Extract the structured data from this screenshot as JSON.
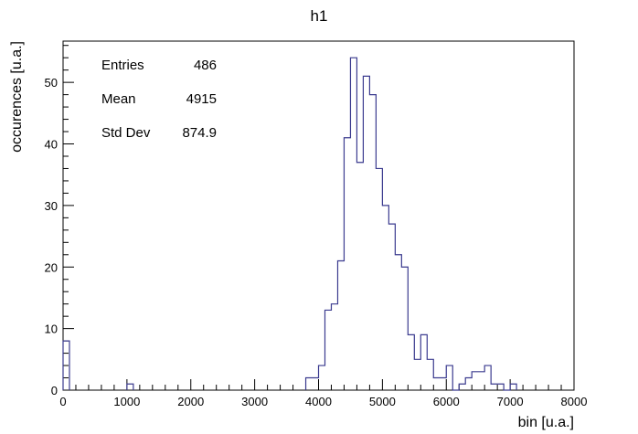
{
  "chart_data": {
    "type": "bar",
    "title": "h1",
    "xlabel": "bin [u.a.]",
    "ylabel": "occurences [u.a.]",
    "xlim": [
      0,
      8000
    ],
    "ylim": [
      0,
      56.7
    ],
    "x_ticks": [
      0,
      1000,
      2000,
      3000,
      4000,
      5000,
      6000,
      7000,
      8000
    ],
    "y_ticks": [
      0,
      10,
      20,
      30,
      40,
      50
    ],
    "grid": false,
    "legend": "none",
    "line_color": "#3b3b8f",
    "bin_width": 100,
    "bins": [
      {
        "x": 0,
        "count": 8
      },
      {
        "x": 1000,
        "count": 1
      },
      {
        "x": 3800,
        "count": 2
      },
      {
        "x": 3900,
        "count": 2
      },
      {
        "x": 4000,
        "count": 4
      },
      {
        "x": 4100,
        "count": 13
      },
      {
        "x": 4200,
        "count": 14
      },
      {
        "x": 4300,
        "count": 21
      },
      {
        "x": 4400,
        "count": 41
      },
      {
        "x": 4500,
        "count": 54
      },
      {
        "x": 4600,
        "count": 37
      },
      {
        "x": 4700,
        "count": 51
      },
      {
        "x": 4800,
        "count": 48
      },
      {
        "x": 4900,
        "count": 36
      },
      {
        "x": 5000,
        "count": 30
      },
      {
        "x": 5100,
        "count": 27
      },
      {
        "x": 5200,
        "count": 22
      },
      {
        "x": 5300,
        "count": 20
      },
      {
        "x": 5400,
        "count": 9
      },
      {
        "x": 5500,
        "count": 5
      },
      {
        "x": 5600,
        "count": 9
      },
      {
        "x": 5700,
        "count": 5
      },
      {
        "x": 5800,
        "count": 2
      },
      {
        "x": 5900,
        "count": 2
      },
      {
        "x": 6000,
        "count": 4
      },
      {
        "x": 6100,
        "count": 0
      },
      {
        "x": 6200,
        "count": 1
      },
      {
        "x": 6300,
        "count": 2
      },
      {
        "x": 6400,
        "count": 3
      },
      {
        "x": 6500,
        "count": 3
      },
      {
        "x": 6600,
        "count": 4
      },
      {
        "x": 6700,
        "count": 1
      },
      {
        "x": 6800,
        "count": 1
      },
      {
        "x": 6900,
        "count": 0
      },
      {
        "x": 7000,
        "count": 1
      }
    ],
    "stats": [
      {
        "label": "Entries",
        "value": "486"
      },
      {
        "label": "Mean",
        "value": "4915"
      },
      {
        "label": "Std Dev",
        "value": "874.9"
      }
    ]
  }
}
